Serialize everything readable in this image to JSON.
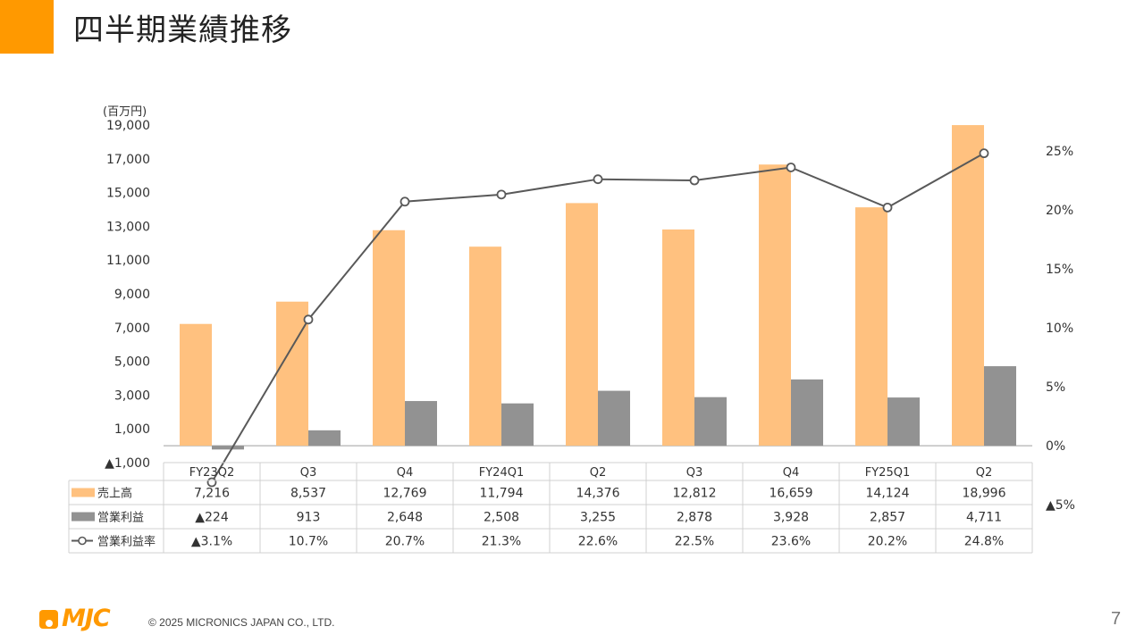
{
  "title": "四半期業績推移",
  "colors": {
    "accent": "#ff9900",
    "sales": "#ffc17f",
    "op": "#929292",
    "rate": "#595959"
  },
  "chart_data": {
    "type": "bar",
    "unit_label": "(百万円)",
    "categories": [
      "FY23Q2",
      "Q3",
      "Q4",
      "FY24Q1",
      "Q2",
      "Q3",
      "Q4",
      "FY25Q1",
      "Q2"
    ],
    "series": [
      {
        "name": "売上高",
        "type": "bar",
        "values": [
          7216,
          8537,
          12769,
          11794,
          14376,
          12812,
          16659,
          14124,
          18996
        ],
        "table_labels": [
          "7,216",
          "8,537",
          "12,769",
          "11,794",
          "14,376",
          "12,812",
          "16,659",
          "14,124",
          "18,996"
        ]
      },
      {
        "name": "営業利益",
        "type": "bar",
        "values": [
          -224,
          913,
          2648,
          2508,
          3255,
          2878,
          3928,
          2857,
          4711
        ],
        "table_labels": [
          "▲224",
          "913",
          "2,648",
          "2,508",
          "3,255",
          "2,878",
          "3,928",
          "2,857",
          "4,711"
        ]
      },
      {
        "name": "営業利益率",
        "type": "line",
        "axis": "right",
        "values": [
          -3.1,
          10.7,
          20.7,
          21.3,
          22.6,
          22.5,
          23.6,
          20.2,
          24.8
        ],
        "table_labels": [
          "▲3.1%",
          "10.7%",
          "20.7%",
          "21.3%",
          "22.6%",
          "22.5%",
          "23.6%",
          "20.2%",
          "24.8%"
        ]
      }
    ],
    "left_axis": {
      "ylim": [
        -1000,
        19000
      ],
      "ticks": [
        -1000,
        1000,
        3000,
        5000,
        7000,
        9000,
        11000,
        13000,
        15000,
        17000,
        19000
      ],
      "tick_labels": [
        "▲1,000",
        "1,000",
        "3,000",
        "5,000",
        "7,000",
        "9,000",
        "11,000",
        "13,000",
        "15,000",
        "17,000",
        "19,000"
      ]
    },
    "right_axis": {
      "ticks": [
        -5,
        0,
        5,
        10,
        15,
        20,
        25
      ],
      "tick_labels": [
        "▲5%",
        "0%",
        "5%",
        "10%",
        "15%",
        "20%",
        "25%"
      ]
    }
  },
  "footer": {
    "logo_text": "MJC",
    "copyright": "© 2025 MICRONICS JAPAN CO., LTD.",
    "page_number": "7"
  }
}
